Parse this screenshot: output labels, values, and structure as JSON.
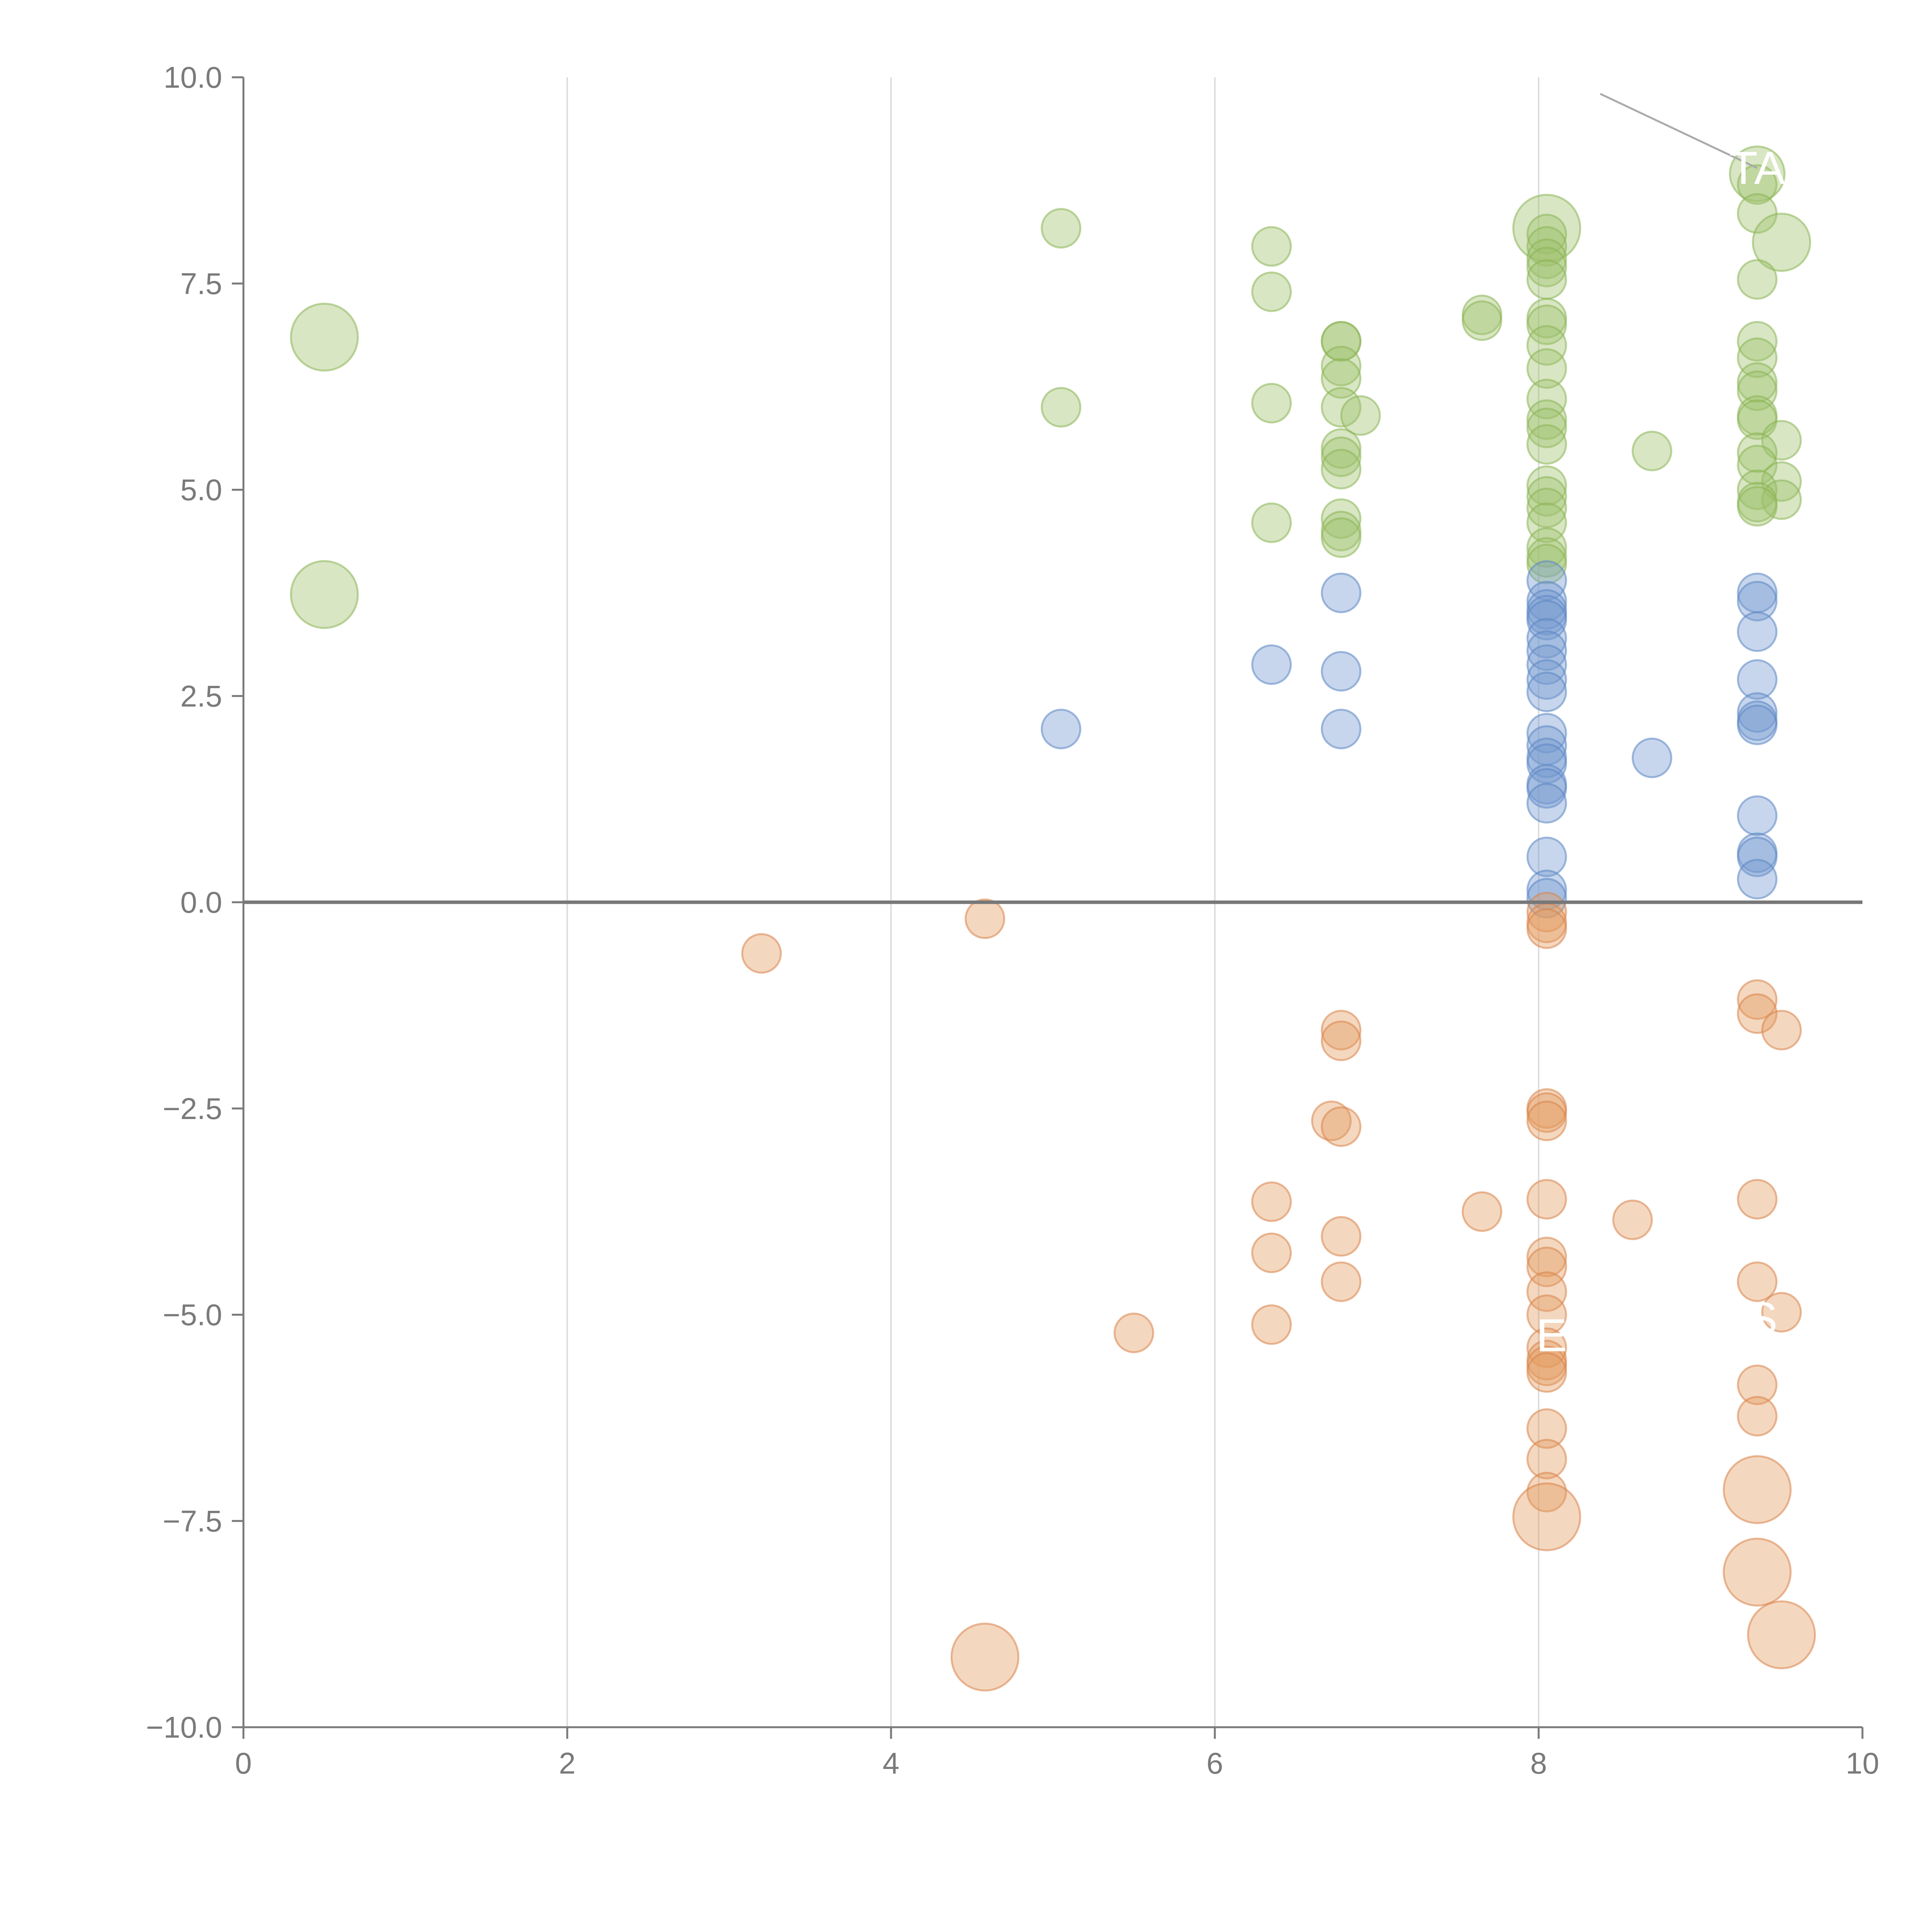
{
  "chart_data": {
    "type": "scatter",
    "title": "",
    "xlabel": "",
    "ylabel": "",
    "xlim": [
      0,
      10
    ],
    "ylim": [
      -10,
      10
    ],
    "grid": "vertical",
    "zero_line": 0,
    "x_ticks": [
      0,
      2,
      4,
      6,
      8,
      10
    ],
    "x_tick_labels": [
      "0",
      "2",
      "4",
      "6",
      "8",
      "10"
    ],
    "y_ticks": [
      10,
      7.5,
      5,
      2.5,
      0,
      -2.5,
      -5,
      -7.5,
      -10
    ],
    "y_tick_labels": [
      "10.0",
      "7.5",
      "5.0",
      "2.5",
      "0.0",
      "−2.5",
      "−5.0",
      "−7.5",
      "−10.0"
    ],
    "colors": {
      "green_fill": "#9dc16b",
      "green_stroke": "#8ab453",
      "blue_fill": "#7299cf",
      "blue_stroke": "#5b87c4",
      "orange_fill": "#e39a5f",
      "orange_stroke": "#d9834a",
      "axis": "#7a7a7a",
      "grid": "#dddddd",
      "zero_line": "#777777"
    },
    "series": [
      {
        "name": "green",
        "color_key": "green",
        "points": [
          {
            "x": 0.5,
            "y": 6.85,
            "s": 3
          },
          {
            "x": 0.5,
            "y": 3.73,
            "s": 3
          },
          {
            "x": 5.05,
            "y": 8.17,
            "s": 1
          },
          {
            "x": 5.05,
            "y": 6.0,
            "s": 1
          },
          {
            "x": 6.35,
            "y": 7.95,
            "s": 1
          },
          {
            "x": 6.35,
            "y": 7.4,
            "s": 1
          },
          {
            "x": 6.35,
            "y": 6.05,
            "s": 1
          },
          {
            "x": 6.35,
            "y": 4.6,
            "s": 1
          },
          {
            "x": 6.78,
            "y": 6.8,
            "s": 1
          },
          {
            "x": 6.78,
            "y": 6.8,
            "s": 1
          },
          {
            "x": 6.78,
            "y": 6.5,
            "s": 1
          },
          {
            "x": 6.78,
            "y": 6.35,
            "s": 1
          },
          {
            "x": 6.78,
            "y": 6.0,
            "s": 1
          },
          {
            "x": 6.9,
            "y": 5.9,
            "s": 1
          },
          {
            "x": 6.78,
            "y": 5.5,
            "s": 1
          },
          {
            "x": 6.78,
            "y": 5.4,
            "s": 1
          },
          {
            "x": 6.78,
            "y": 5.25,
            "s": 1
          },
          {
            "x": 6.78,
            "y": 4.65,
            "s": 1
          },
          {
            "x": 6.78,
            "y": 4.5,
            "s": 1
          },
          {
            "x": 6.78,
            "y": 4.42,
            "s": 1
          },
          {
            "x": 7.65,
            "y": 7.12,
            "s": 1
          },
          {
            "x": 7.65,
            "y": 7.05,
            "s": 1
          },
          {
            "x": 8.05,
            "y": 8.17,
            "s": 3
          },
          {
            "x": 8.05,
            "y": 8.1,
            "s": 1
          },
          {
            "x": 8.05,
            "y": 7.95,
            "s": 1
          },
          {
            "x": 8.05,
            "y": 7.8,
            "s": 1
          },
          {
            "x": 8.05,
            "y": 7.7,
            "s": 1
          },
          {
            "x": 8.05,
            "y": 7.55,
            "s": 1
          },
          {
            "x": 8.05,
            "y": 7.08,
            "s": 1
          },
          {
            "x": 8.05,
            "y": 7.0,
            "s": 1
          },
          {
            "x": 8.05,
            "y": 6.75,
            "s": 1
          },
          {
            "x": 8.05,
            "y": 6.47,
            "s": 1
          },
          {
            "x": 8.05,
            "y": 6.1,
            "s": 1
          },
          {
            "x": 8.05,
            "y": 5.85,
            "s": 1
          },
          {
            "x": 8.05,
            "y": 5.75,
            "s": 1
          },
          {
            "x": 8.05,
            "y": 5.55,
            "s": 1
          },
          {
            "x": 8.05,
            "y": 5.05,
            "s": 1
          },
          {
            "x": 8.05,
            "y": 4.92,
            "s": 1
          },
          {
            "x": 8.05,
            "y": 4.78,
            "s": 1
          },
          {
            "x": 8.05,
            "y": 4.6,
            "s": 1
          },
          {
            "x": 8.05,
            "y": 4.3,
            "s": 1
          },
          {
            "x": 8.05,
            "y": 4.18,
            "s": 1
          },
          {
            "x": 8.05,
            "y": 4.1,
            "s": 1
          },
          {
            "x": 8.7,
            "y": 5.47,
            "s": 1
          },
          {
            "x": 9.35,
            "y": 8.83,
            "s": 2
          },
          {
            "x": 9.35,
            "y": 8.7,
            "s": 1
          },
          {
            "x": 9.35,
            "y": 8.35,
            "s": 1
          },
          {
            "x": 9.5,
            "y": 8.0,
            "s": 2.2
          },
          {
            "x": 9.35,
            "y": 7.55,
            "s": 1
          },
          {
            "x": 9.35,
            "y": 6.8,
            "s": 1
          },
          {
            "x": 9.35,
            "y": 6.6,
            "s": 1
          },
          {
            "x": 9.35,
            "y": 6.3,
            "s": 1
          },
          {
            "x": 9.35,
            "y": 6.2,
            "s": 1
          },
          {
            "x": 9.35,
            "y": 5.9,
            "s": 1
          },
          {
            "x": 9.35,
            "y": 5.85,
            "s": 1
          },
          {
            "x": 9.5,
            "y": 5.6,
            "s": 1
          },
          {
            "x": 9.35,
            "y": 5.45,
            "s": 1
          },
          {
            "x": 9.35,
            "y": 5.3,
            "s": 1
          },
          {
            "x": 9.5,
            "y": 5.1,
            "s": 1
          },
          {
            "x": 9.35,
            "y": 5.0,
            "s": 1
          },
          {
            "x": 9.5,
            "y": 4.88,
            "s": 1
          },
          {
            "x": 9.35,
            "y": 4.85,
            "s": 1
          },
          {
            "x": 9.35,
            "y": 4.8,
            "s": 1
          }
        ]
      },
      {
        "name": "blue",
        "color_key": "blue",
        "points": [
          {
            "x": 5.05,
            "y": 2.1,
            "s": 1
          },
          {
            "x": 6.35,
            "y": 2.88,
            "s": 1
          },
          {
            "x": 6.78,
            "y": 3.75,
            "s": 1
          },
          {
            "x": 6.78,
            "y": 2.8,
            "s": 1
          },
          {
            "x": 6.78,
            "y": 2.1,
            "s": 1
          },
          {
            "x": 8.05,
            "y": 3.9,
            "s": 1
          },
          {
            "x": 8.05,
            "y": 3.65,
            "s": 1
          },
          {
            "x": 8.05,
            "y": 3.55,
            "s": 1
          },
          {
            "x": 8.05,
            "y": 3.48,
            "s": 1
          },
          {
            "x": 8.05,
            "y": 3.42,
            "s": 1
          },
          {
            "x": 8.05,
            "y": 3.2,
            "s": 1
          },
          {
            "x": 8.05,
            "y": 3.05,
            "s": 1
          },
          {
            "x": 8.05,
            "y": 2.88,
            "s": 1
          },
          {
            "x": 8.05,
            "y": 2.7,
            "s": 1
          },
          {
            "x": 8.05,
            "y": 2.55,
            "s": 1
          },
          {
            "x": 8.05,
            "y": 2.05,
            "s": 1
          },
          {
            "x": 8.05,
            "y": 1.9,
            "s": 1
          },
          {
            "x": 8.05,
            "y": 1.75,
            "s": 1
          },
          {
            "x": 8.05,
            "y": 1.68,
            "s": 1
          },
          {
            "x": 8.05,
            "y": 1.43,
            "s": 1
          },
          {
            "x": 8.05,
            "y": 1.38,
            "s": 1
          },
          {
            "x": 8.05,
            "y": 1.2,
            "s": 1
          },
          {
            "x": 8.05,
            "y": 0.55,
            "s": 1
          },
          {
            "x": 8.05,
            "y": 0.15,
            "s": 1
          },
          {
            "x": 8.05,
            "y": 0.05,
            "s": 1
          },
          {
            "x": 8.7,
            "y": 1.75,
            "s": 1
          },
          {
            "x": 9.35,
            "y": 3.75,
            "s": 1
          },
          {
            "x": 9.35,
            "y": 3.65,
            "s": 1
          },
          {
            "x": 9.35,
            "y": 3.28,
            "s": 1
          },
          {
            "x": 9.35,
            "y": 2.7,
            "s": 1
          },
          {
            "x": 9.35,
            "y": 2.3,
            "s": 1
          },
          {
            "x": 9.35,
            "y": 2.2,
            "s": 1
          },
          {
            "x": 9.35,
            "y": 2.15,
            "s": 1
          },
          {
            "x": 9.35,
            "y": 1.05,
            "s": 1
          },
          {
            "x": 9.35,
            "y": 0.6,
            "s": 1
          },
          {
            "x": 9.35,
            "y": 0.55,
            "s": 1
          },
          {
            "x": 9.35,
            "y": 0.28,
            "s": 1
          }
        ]
      },
      {
        "name": "orange",
        "color_key": "orange",
        "points": [
          {
            "x": 3.2,
            "y": -0.62,
            "s": 1
          },
          {
            "x": 4.58,
            "y": -0.2,
            "s": 1
          },
          {
            "x": 4.58,
            "y": -9.15,
            "s": 3
          },
          {
            "x": 5.5,
            "y": -5.22,
            "s": 1
          },
          {
            "x": 6.35,
            "y": -3.63,
            "s": 1
          },
          {
            "x": 6.35,
            "y": -4.25,
            "s": 1
          },
          {
            "x": 6.35,
            "y": -5.12,
            "s": 1
          },
          {
            "x": 6.78,
            "y": -1.55,
            "s": 1
          },
          {
            "x": 6.78,
            "y": -1.68,
            "s": 1
          },
          {
            "x": 6.72,
            "y": -2.65,
            "s": 1
          },
          {
            "x": 6.78,
            "y": -2.72,
            "s": 1
          },
          {
            "x": 6.78,
            "y": -4.05,
            "s": 1
          },
          {
            "x": 6.78,
            "y": -4.6,
            "s": 1
          },
          {
            "x": 7.65,
            "y": -3.75,
            "s": 1
          },
          {
            "x": 8.05,
            "y": -0.12,
            "s": 1
          },
          {
            "x": 8.05,
            "y": -0.25,
            "s": 1
          },
          {
            "x": 8.05,
            "y": -0.32,
            "s": 1
          },
          {
            "x": 8.05,
            "y": -2.5,
            "s": 1
          },
          {
            "x": 8.05,
            "y": -2.55,
            "s": 1
          },
          {
            "x": 8.05,
            "y": -2.65,
            "s": 1
          },
          {
            "x": 8.05,
            "y": -3.6,
            "s": 1
          },
          {
            "x": 8.05,
            "y": -4.3,
            "s": 1
          },
          {
            "x": 8.05,
            "y": -4.42,
            "s": 1
          },
          {
            "x": 8.05,
            "y": -4.72,
            "s": 1
          },
          {
            "x": 8.05,
            "y": -5.0,
            "s": 1
          },
          {
            "x": 8.05,
            "y": -5.4,
            "s": 1
          },
          {
            "x": 8.05,
            "y": -5.55,
            "s": 1
          },
          {
            "x": 8.05,
            "y": -5.62,
            "s": 1
          },
          {
            "x": 8.05,
            "y": -5.7,
            "s": 1
          },
          {
            "x": 8.05,
            "y": -6.38,
            "s": 1
          },
          {
            "x": 8.05,
            "y": -6.75,
            "s": 1
          },
          {
            "x": 8.05,
            "y": -7.15,
            "s": 1
          },
          {
            "x": 8.05,
            "y": -7.45,
            "s": 3
          },
          {
            "x": 8.58,
            "y": -3.85,
            "s": 1
          },
          {
            "x": 9.35,
            "y": -1.18,
            "s": 1
          },
          {
            "x": 9.35,
            "y": -1.35,
            "s": 1
          },
          {
            "x": 9.5,
            "y": -1.55,
            "s": 1
          },
          {
            "x": 9.35,
            "y": -3.6,
            "s": 1
          },
          {
            "x": 9.35,
            "y": -4.6,
            "s": 1
          },
          {
            "x": 9.5,
            "y": -4.97,
            "s": 1
          },
          {
            "x": 9.35,
            "y": -5.85,
            "s": 1
          },
          {
            "x": 9.35,
            "y": -6.23,
            "s": 1
          },
          {
            "x": 9.35,
            "y": -7.12,
            "s": 3
          },
          {
            "x": 9.35,
            "y": -8.12,
            "s": 3
          },
          {
            "x": 9.5,
            "y": -8.88,
            "s": 3
          }
        ]
      }
    ],
    "annotations": [
      {
        "text": "TA",
        "x": 9.35,
        "y": 8.9,
        "leader": {
          "x1": 8.38,
          "y1": 9.8,
          "x2": 9.35,
          "y2": 8.9
        }
      },
      {
        "text": "E",
        "x": 8.08,
        "y": -5.25
      },
      {
        "text": "S",
        "x": 9.38,
        "y": -5.05
      }
    ]
  }
}
